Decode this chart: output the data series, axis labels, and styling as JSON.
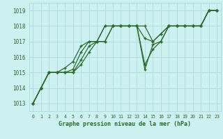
{
  "title": "Graphe pression niveau de la mer (hPa)",
  "background_color": "#cdf0f0",
  "grid_color": "#b0dede",
  "line_color": "#2d6a2d",
  "xlim": [
    -0.5,
    23.5
  ],
  "ylim": [
    1012.5,
    1019.5
  ],
  "yticks": [
    1013,
    1014,
    1015,
    1016,
    1017,
    1018,
    1019
  ],
  "xticks": [
    0,
    1,
    2,
    3,
    4,
    5,
    6,
    7,
    8,
    9,
    10,
    11,
    12,
    13,
    14,
    15,
    16,
    17,
    18,
    19,
    20,
    21,
    22,
    23
  ],
  "series": [
    [
      1013.0,
      1014.0,
      1015.0,
      1015.0,
      1015.0,
      1015.2,
      1016.3,
      1017.0,
      1017.0,
      1018.0,
      1018.0,
      1018.0,
      1018.0,
      1018.0,
      1018.0,
      1017.0,
      1017.5,
      1018.0,
      1018.0,
      1018.0,
      1018.0,
      1018.0,
      1019.0,
      1019.0
    ],
    [
      1013.0,
      1014.0,
      1015.0,
      1015.0,
      1015.3,
      1015.7,
      1016.7,
      1017.0,
      1017.0,
      1018.0,
      1018.0,
      1018.0,
      1018.0,
      1018.0,
      1017.2,
      1017.0,
      1017.5,
      1018.0,
      1018.0,
      1018.0,
      1018.0,
      1018.0,
      1019.0,
      1019.0
    ],
    [
      1013.0,
      1014.0,
      1015.0,
      1015.0,
      1015.0,
      1015.0,
      1015.8,
      1016.7,
      1017.0,
      1017.0,
      1018.0,
      1018.0,
      1018.0,
      1018.0,
      1015.2,
      1016.8,
      1017.0,
      1018.0,
      1018.0,
      1018.0,
      1018.0,
      1018.0,
      1019.0,
      1019.0
    ],
    [
      1013.0,
      1014.0,
      1015.0,
      1015.0,
      1015.0,
      1015.0,
      1015.5,
      1016.3,
      1017.0,
      1017.0,
      1018.0,
      1018.0,
      1018.0,
      1018.0,
      1015.5,
      1016.5,
      1017.0,
      1018.0,
      1018.0,
      1018.0,
      1018.0,
      1018.0,
      1019.0,
      1019.0
    ]
  ]
}
